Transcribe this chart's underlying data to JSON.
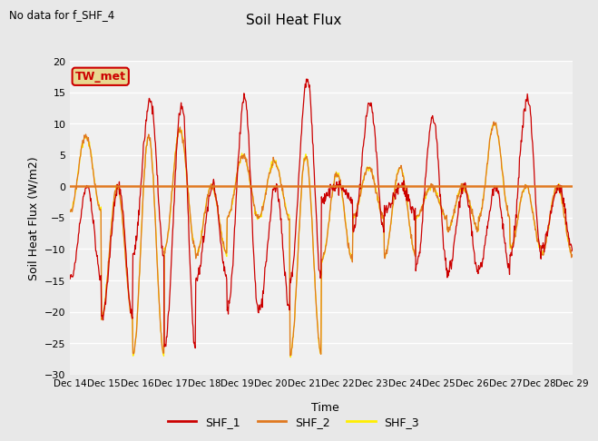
{
  "title": "Soil Heat Flux",
  "subtitle": "No data for f_SHF_4",
  "ylabel": "Soil Heat Flux (W/m2)",
  "xlabel": "Time",
  "annotation": "TW_met",
  "ylim": [
    -30,
    20
  ],
  "yticks": [
    -30,
    -25,
    -20,
    -15,
    -10,
    -5,
    0,
    5,
    10,
    15,
    20
  ],
  "x_labels": [
    "Dec 14",
    "Dec 15",
    "Dec 16",
    "Dec 17",
    "Dec 18",
    "Dec 19",
    "Dec 20",
    "Dec 21",
    "Dec 22",
    "Dec 23",
    "Dec 24",
    "Dec 25",
    "Dec 26",
    "Dec 27",
    "Dec 28",
    "Dec 29"
  ],
  "colors": {
    "SHF_1": "#cc0000",
    "SHF_2": "#e07820",
    "SHF_3": "#ffee00",
    "zero_line": "#e07820",
    "background": "#e8e8e8",
    "plot_bg": "#f0f0f0",
    "grid": "#ffffff",
    "annotation_bg": "#e8d890",
    "annotation_border": "#cc0000"
  },
  "legend": [
    "SHF_1",
    "SHF_2",
    "SHF_3"
  ],
  "n_points": 960
}
